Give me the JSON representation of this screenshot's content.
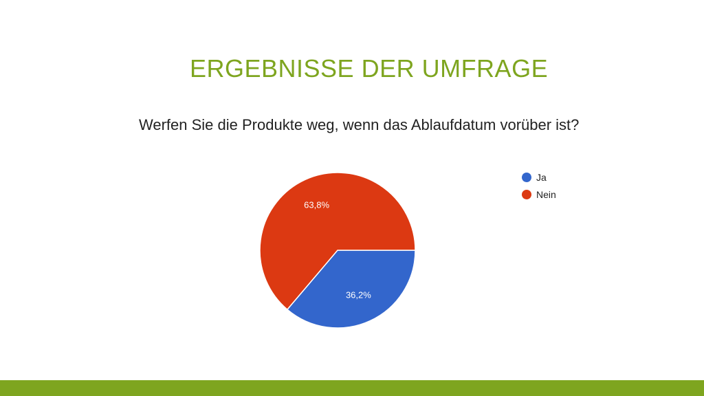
{
  "slide": {
    "title": "ERGEBNISSE DER UMFRAGE",
    "accent_color": "#7ea51f"
  },
  "chart_data": {
    "type": "pie",
    "title": "Werfen Sie die Produkte weg, wenn das Ablaufdatum vorüber ist?",
    "slices": [
      {
        "label": "Ja",
        "value": 36.2,
        "display": "36,2%",
        "color": "#3366cc"
      },
      {
        "label": "Nein",
        "value": 63.8,
        "display": "63,8%",
        "color": "#dc3912"
      }
    ],
    "legend_position": "right"
  }
}
